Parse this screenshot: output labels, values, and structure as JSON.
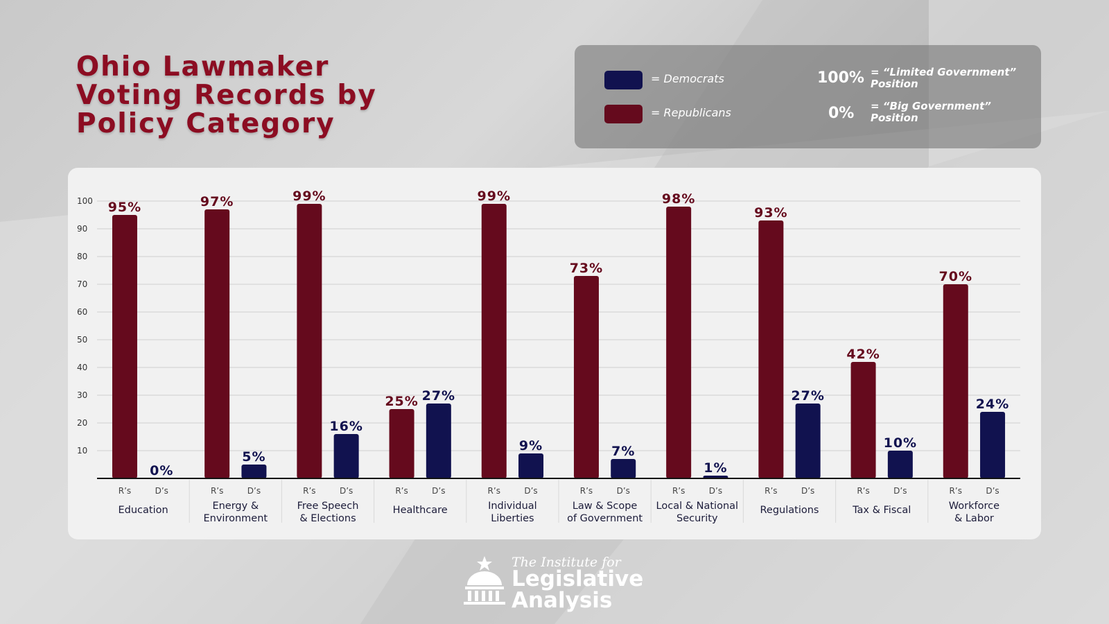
{
  "title": "Ohio Lawmaker\nVoting Records by\nPolicy Category",
  "legend": {
    "democrats_label": "= Democrats",
    "republicans_label": "= Republicans",
    "high_value": "100%",
    "high_desc": "= “Limited Government”\nPosition",
    "low_value": "0%",
    "low_desc": "= “Big Government”\nPosition",
    "colors": {
      "democrats": "#11124f",
      "republicans": "#650a1d"
    }
  },
  "footer": {
    "line1": "The Institute for",
    "line2": "Legislative\nAnalysis"
  },
  "chart_data": {
    "type": "bar",
    "ylim": [
      0,
      100
    ],
    "yticks": [
      10,
      20,
      30,
      40,
      50,
      60,
      70,
      80,
      90,
      100
    ],
    "grid": true,
    "categories": [
      "Education",
      "Energy &\nEnvironment",
      "Free Speech\n& Elections",
      "Healthcare",
      "Individual\nLiberties",
      "Law & Scope\nof Government",
      "Local & National\nSecurity",
      "Regulations",
      "Tax & Fiscal",
      "Workforce\n& Labor"
    ],
    "sub_labels": [
      "R’s",
      "D’s"
    ],
    "series": [
      {
        "name": "Republicans",
        "color": "#650a1d",
        "values": [
          95,
          97,
          99,
          25,
          99,
          73,
          98,
          93,
          42,
          70
        ],
        "labels": [
          "95%",
          "97%",
          "99%",
          "25%",
          "99%",
          "73%",
          "98%",
          "93%",
          "42%",
          "70%"
        ]
      },
      {
        "name": "Democrats",
        "color": "#11124f",
        "values": [
          0,
          5,
          16,
          27,
          9,
          7,
          1,
          27,
          10,
          24
        ],
        "labels": [
          "0%",
          "5%",
          "16%",
          "27%",
          "9%",
          "7%",
          "1%",
          "27%",
          "10%",
          "24%"
        ]
      }
    ]
  }
}
